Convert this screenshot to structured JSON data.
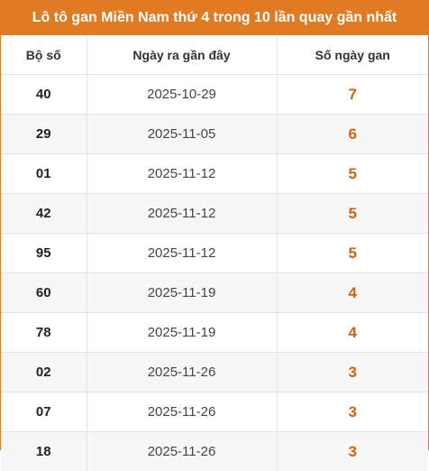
{
  "title": "Lô tô gan Miền Nam thứ 4 trong 10 lần quay gần nhất",
  "columns": [
    "Bộ số",
    "Ngày ra gần đây",
    "Số ngày gan"
  ],
  "rows": [
    {
      "number": "40",
      "date": "2025-10-29",
      "days": "7"
    },
    {
      "number": "29",
      "date": "2025-11-05",
      "days": "6"
    },
    {
      "number": "01",
      "date": "2025-11-12",
      "days": "5"
    },
    {
      "number": "42",
      "date": "2025-11-12",
      "days": "5"
    },
    {
      "number": "95",
      "date": "2025-11-12",
      "days": "5"
    },
    {
      "number": "60",
      "date": "2025-11-19",
      "days": "4"
    },
    {
      "number": "78",
      "date": "2025-11-19",
      "days": "4"
    },
    {
      "number": "02",
      "date": "2025-11-26",
      "days": "3"
    },
    {
      "number": "07",
      "date": "2025-11-26",
      "days": "3"
    },
    {
      "number": "18",
      "date": "2025-11-26",
      "days": "3"
    }
  ],
  "colors": {
    "header_bg": "#e07b24",
    "accent_value": "#d0620f",
    "stripe": "#f7f7f7"
  }
}
